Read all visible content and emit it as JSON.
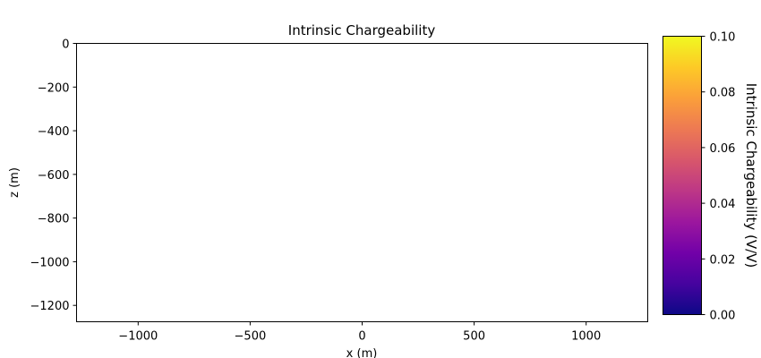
{
  "chart_data": {
    "type": "heatmap",
    "title": "Intrinsic Chargeability",
    "xlabel": "x (m)",
    "ylabel": "z (m)",
    "xlim": [
      -1275,
      1275
    ],
    "ylim": [
      -1275,
      0
    ],
    "x_ticks": [
      -1000,
      -500,
      0,
      500,
      1000
    ],
    "x_tick_labels": [
      "−1000",
      "−500",
      "0",
      "500",
      "1000"
    ],
    "y_ticks": [
      0,
      -200,
      -400,
      -600,
      -800,
      -1000,
      -1200
    ],
    "y_tick_labels": [
      "0",
      "−200",
      "−400",
      "−600",
      "−800",
      "−1000",
      "−1200"
    ],
    "values": [],
    "grid": false,
    "colorbar": {
      "label": "Intrinsic Chargeability (V/V)",
      "colormap": "plasma",
      "range": [
        0,
        0.1
      ],
      "ticks": [
        0,
        0.02,
        0.04,
        0.06,
        0.08,
        0.1
      ],
      "tick_labels": [
        "0.00",
        "0.02",
        "0.04",
        "0.06",
        "0.08",
        "0.10"
      ],
      "colors": [
        "#0d0887",
        "#46039f",
        "#7201a8",
        "#9c179e",
        "#bd3786",
        "#d8576b",
        "#ed7953",
        "#fb9f3a",
        "#fdca26",
        "#f0f921"
      ]
    }
  }
}
